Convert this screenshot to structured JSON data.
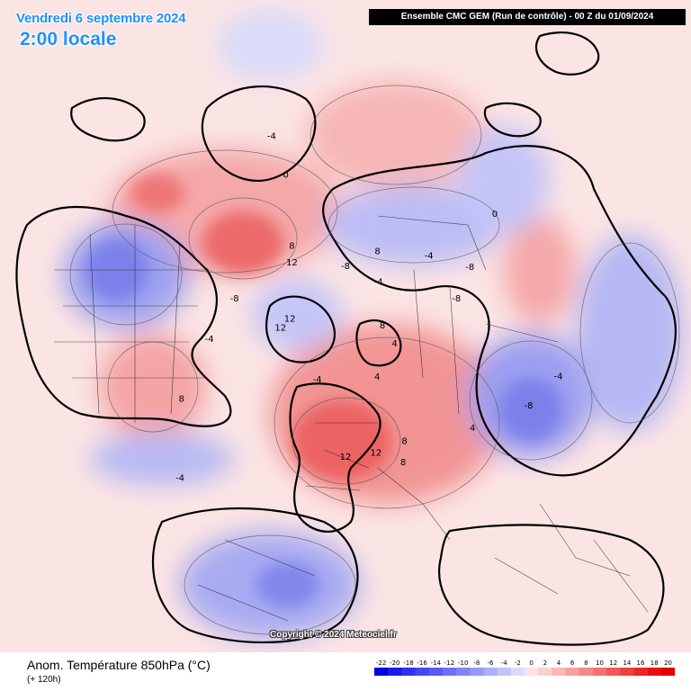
{
  "header": {
    "date_title": "Vendredi 6 septembre 2024",
    "time_title": "2:00 locale",
    "model_info": "Ensemble CMC GEM  (Run de contrôle)  -  00 Z du 01/09/2024"
  },
  "copyright": "Copyright © 2024 Meteociel.fr",
  "footer": {
    "parameter": "Anom. Température 850hPa (°C)",
    "lead_time": "(+ 120h)"
  },
  "legend": {
    "values": [
      "-22",
      "-20",
      "-18",
      "-16",
      "-14",
      "-12",
      "-10",
      "-8",
      "-6",
      "-4",
      "-2",
      "0",
      "2",
      "4",
      "6",
      "8",
      "10",
      "12",
      "14",
      "16",
      "18",
      "20"
    ],
    "colors": [
      "#0000dd",
      "#1b1be6",
      "#3030ee",
      "#4646f2",
      "#5a5af4",
      "#6f6ff6",
      "#8484f7",
      "#9898f8",
      "#aeaefa",
      "#c4c4fb",
      "#dadafd",
      "#fde2e2",
      "#fcd0d0",
      "#fab8b8",
      "#f8a0a0",
      "#f58888",
      "#f27070",
      "#ef5858",
      "#ec4040",
      "#e92828",
      "#e61212",
      "#e00000"
    ]
  },
  "map_labels": [
    {
      "text": "12",
      "lon": -155,
      "lat": 62
    },
    {
      "text": "12",
      "lon": -120,
      "lat": 72
    },
    {
      "text": "12",
      "lon": -110,
      "lat": 70
    },
    {
      "text": "8",
      "lon": -160,
      "lat": 58
    },
    {
      "text": "-8",
      "lon": -120,
      "lat": 55
    },
    {
      "text": "-4",
      "lon": -100,
      "lat": 50
    },
    {
      "text": "8",
      "lon": -80,
      "lat": 40
    },
    {
      "text": "-4",
      "lon": -60,
      "lat": 30
    },
    {
      "text": "12",
      "lon": -10,
      "lat": 55
    },
    {
      "text": "12",
      "lon": 5,
      "lat": 55
    },
    {
      "text": "8",
      "lon": 15,
      "lat": 50
    },
    {
      "text": "8",
      "lon": 20,
      "lat": 55
    },
    {
      "text": "-8",
      "lon": 60,
      "lat": 35
    },
    {
      "text": "-4",
      "lon": 70,
      "lat": 30
    },
    {
      "text": "-8",
      "lon": 100,
      "lat": 55
    },
    {
      "text": "-8",
      "lon": 110,
      "lat": 48
    },
    {
      "text": "-4",
      "lon": 125,
      "lat": 55
    },
    {
      "text": "8",
      "lon": 150,
      "lat": 62
    },
    {
      "text": "-8",
      "lon": 170,
      "lat": 68
    },
    {
      "text": "-4",
      "lon": 140,
      "lat": 70
    },
    {
      "text": "8",
      "lon": 100,
      "lat": 78
    },
    {
      "text": "4",
      "lon": 75,
      "lat": 75
    },
    {
      "text": "-4",
      "lon": -45,
      "lat": 75
    },
    {
      "text": "0",
      "lon": -170,
      "lat": 40
    },
    {
      "text": "4",
      "lon": 30,
      "lat": 75
    },
    {
      "text": "0",
      "lon": 120,
      "lat": 35
    },
    {
      "text": "-4",
      "lon": -170,
      "lat": 30
    },
    {
      "text": "4",
      "lon": 45,
      "lat": 45
    }
  ]
}
